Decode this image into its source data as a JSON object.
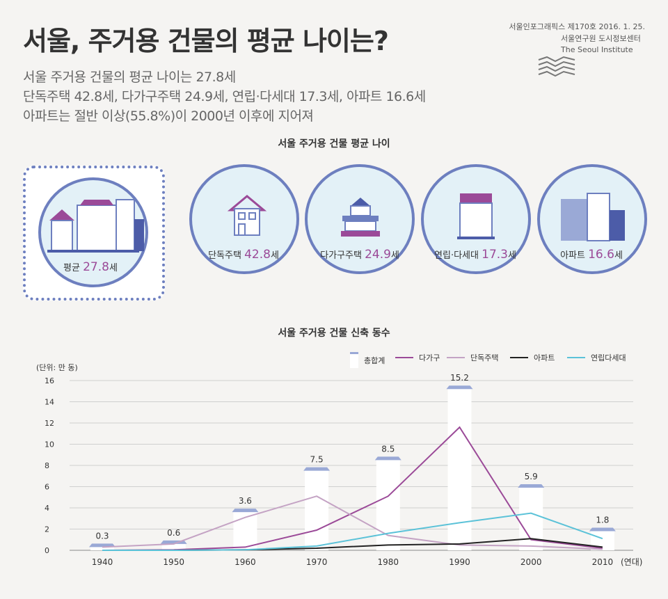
{
  "header": {
    "title": "서울, 주거용 건물의 평균 나이는?",
    "sub1": "서울 주거용 건물의 평균 나이는 27.8세",
    "sub2": "단독주택 42.8세, 다가구주택 24.9세, 연립·다세대 17.3세, 아파트 16.6세",
    "sub3": "아파트는 절반 이상(55.8%)이 2000년 이후에 지어져",
    "issue": "서울인포그래픽스 제170호 2016. 1. 25.",
    "inst1": "서울연구원 도시정보센터",
    "inst2": "The Seoul Institute"
  },
  "ages": {
    "title": "서울 주거용 건물 평균 나이",
    "items": [
      {
        "label": "평균",
        "value": "27.8",
        "unit": "세"
      },
      {
        "label": "단독주택",
        "value": "42.8",
        "unit": "세"
      },
      {
        "label": "다가구주택",
        "value": "24.9",
        "unit": "세"
      },
      {
        "label": "연립·다세대",
        "value": "17.3",
        "unit": "세"
      },
      {
        "label": "아파트",
        "value": "16.6",
        "unit": "세"
      }
    ]
  },
  "colors": {
    "accent": "#9b4a98",
    "border": "#6d7fbf",
    "circle_fill": "#e3f1f7",
    "dagagu": "#9b4a98",
    "dandok": "#c4a3c4",
    "apt": "#222222",
    "yeonrip": "#5bc2d8",
    "bar": "#ffffff",
    "bar_roof": "#9aa9d6"
  },
  "chart_data": {
    "type": "bar",
    "title": "서울 주거용 건물 신축 동수",
    "ylabel": "(단위: 만 동)",
    "xlabel": "(연대)",
    "categories": [
      "1940",
      "1950",
      "1960",
      "1970",
      "1980",
      "1990",
      "2000",
      "2010"
    ],
    "ylim": [
      0,
      16
    ],
    "yticks": [
      "0",
      "2",
      "4",
      "6",
      "8",
      "10",
      "12",
      "14",
      "16"
    ],
    "grid": true,
    "legend_position": "top-right",
    "series": [
      {
        "name": "총합계",
        "type": "bar",
        "values": [
          0.3,
          0.6,
          3.6,
          7.5,
          8.5,
          15.2,
          5.9,
          1.8
        ],
        "labels": [
          "0.3",
          "0.6",
          "3.6",
          "7.5",
          "8.5",
          "15.2",
          "5.9",
          "1.8"
        ]
      },
      {
        "name": "다가구",
        "type": "line",
        "values": [
          0.0,
          0.05,
          0.3,
          1.9,
          5.1,
          11.6,
          1.0,
          0.2
        ]
      },
      {
        "name": "단독주택",
        "type": "line",
        "values": [
          0.3,
          0.6,
          3.1,
          5.1,
          1.4,
          0.5,
          0.4,
          0.1
        ]
      },
      {
        "name": "아파트",
        "type": "line",
        "values": [
          0.0,
          0.0,
          0.05,
          0.2,
          0.5,
          0.6,
          1.1,
          0.3
        ]
      },
      {
        "name": "연립다세대",
        "type": "line",
        "values": [
          0.0,
          0.0,
          0.05,
          0.4,
          1.6,
          2.6,
          3.5,
          1.1
        ]
      }
    ]
  }
}
